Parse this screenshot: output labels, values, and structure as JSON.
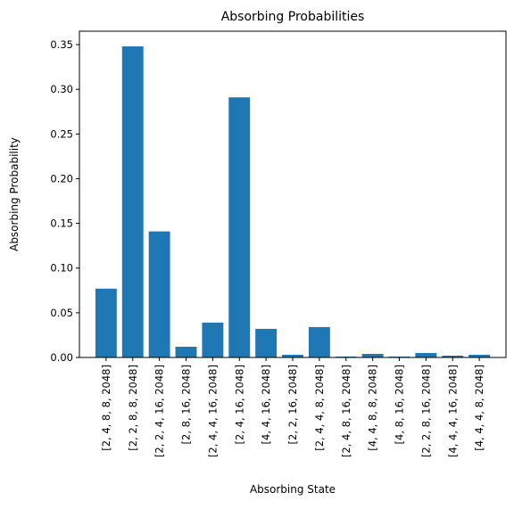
{
  "chart_data": {
    "type": "bar",
    "title": "Absorbing Probabilities",
    "xlabel": "Absorbing State",
    "ylabel": "Absorbing Probability",
    "ylim": [
      0,
      0.365
    ],
    "yticks": [
      "0.00",
      "0.05",
      "0.10",
      "0.15",
      "0.20",
      "0.25",
      "0.30",
      "0.35"
    ],
    "grid": false,
    "bar_color": "#1f77b4",
    "categories": [
      "[2, 4, 8, 8, 2048]",
      "[2, 2, 8, 8, 2048]",
      "[2, 2, 4, 16, 2048]",
      "[2, 8, 16, 2048]",
      "[2, 4, 4, 16, 2048]",
      "[2, 4, 16, 2048]",
      "[4, 4, 16, 2048]",
      "[2, 2, 16, 2048]",
      "[2, 4, 4, 8, 2048]",
      "[2, 4, 8, 16, 2048]",
      "[4, 4, 8, 8, 2048]",
      "[4, 8, 16, 2048]",
      "[2, 2, 8, 16, 2048]",
      "[4, 4, 4, 16, 2048]",
      "[4, 4, 4, 8, 2048]"
    ],
    "values": [
      0.077,
      0.348,
      0.141,
      0.012,
      0.039,
      0.291,
      0.032,
      0.003,
      0.034,
      0.001,
      0.004,
      0.001,
      0.005,
      0.002,
      0.003
    ]
  }
}
